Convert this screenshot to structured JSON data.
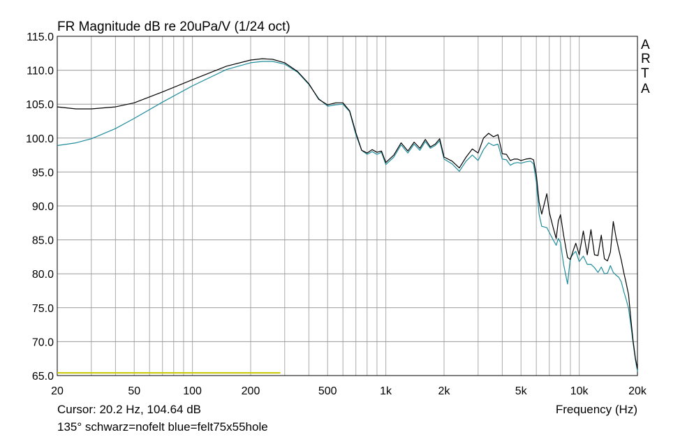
{
  "chart_data": {
    "type": "line",
    "title": "FR Magnitude dB re 20uPa/V (1/24 oct)",
    "xlabel": "Frequency (Hz)",
    "ylabel": "",
    "x_scale": "log",
    "xlim": [
      20,
      20000
    ],
    "ylim": [
      65,
      115
    ],
    "grid": true,
    "x_tick_values": [
      20,
      50,
      100,
      200,
      500,
      1000,
      2000,
      5000,
      10000,
      20000
    ],
    "x_tick_labels": [
      "20",
      "50",
      "100",
      "200",
      "500",
      "1k",
      "2k",
      "5k",
      "10k",
      "20k"
    ],
    "y_tick_values": [
      65,
      70,
      75,
      80,
      85,
      90,
      95,
      100,
      105,
      110,
      115
    ],
    "y_tick_labels": [
      "65.0",
      "70.0",
      "75.0",
      "80.0",
      "85.0",
      "90.0",
      "95.0",
      "100.0",
      "105.0",
      "110.0",
      "115.0"
    ],
    "watermark": [
      "A",
      "R",
      "T",
      "A"
    ],
    "cursor_text": "Cursor: 20.2 Hz, 104.64 dB",
    "legend_text": "135° schwarz=nofelt blue=felt75x55hole",
    "marker_line": {
      "x": [
        20,
        285
      ],
      "y": 65.4,
      "color": "#c8c800"
    },
    "series": [
      {
        "color": "#000000",
        "x": [
          20,
          25,
          30,
          40,
          50,
          70,
          100,
          150,
          200,
          230,
          260,
          300,
          350,
          400,
          450,
          500,
          550,
          600,
          650,
          700,
          750,
          800,
          850,
          900,
          950,
          1000,
          1100,
          1200,
          1300,
          1400,
          1500,
          1600,
          1700,
          1800,
          1900,
          2000,
          2200,
          2400,
          2600,
          2800,
          3000,
          3200,
          3400,
          3600,
          3800,
          4000,
          4200,
          4400,
          4600,
          4800,
          5000,
          5300,
          5600,
          5800,
          6000,
          6200,
          6400,
          6800,
          7000,
          7300,
          7600,
          7800,
          8000,
          8300,
          8700,
          9000,
          9300,
          9600,
          10000,
          10500,
          11000,
          11500,
          12000,
          12500,
          13000,
          13500,
          14000,
          14500,
          15000,
          15500,
          16000,
          16500,
          17000,
          17500,
          18000,
          18500,
          19000,
          19500,
          20000
        ],
        "y": [
          104.6,
          104.3,
          104.3,
          104.6,
          105.2,
          106.8,
          108.6,
          110.6,
          111.5,
          111.7,
          111.6,
          111.1,
          109.8,
          108.0,
          105.7,
          104.9,
          105.2,
          105.2,
          104.0,
          100.8,
          98.2,
          97.8,
          98.3,
          97.9,
          98.1,
          96.4,
          97.5,
          99.3,
          98.1,
          99.4,
          98.5,
          99.8,
          98.7,
          99.1,
          99.9,
          97.2,
          96.6,
          95.6,
          97.2,
          98.4,
          97.8,
          100.0,
          100.7,
          100.2,
          100.5,
          97.7,
          97.6,
          96.7,
          96.9,
          96.9,
          96.7,
          96.9,
          97.0,
          96.8,
          94.6,
          90.6,
          88.8,
          91.8,
          89.1,
          87.0,
          85.2,
          87.8,
          88.7,
          85.7,
          82.4,
          82.1,
          83.4,
          84.5,
          82.8,
          86.3,
          82.8,
          86.5,
          82.8,
          82.7,
          85.7,
          82.2,
          81.9,
          83.2,
          87.7,
          85.4,
          83.6,
          82.0,
          80.2,
          78.6,
          76.9,
          73.3,
          70.1,
          67.6,
          66.0
        ]
      },
      {
        "color": "#1e8c9a",
        "x": [
          20,
          25,
          30,
          40,
          50,
          70,
          100,
          150,
          200,
          230,
          260,
          300,
          350,
          400,
          450,
          500,
          550,
          600,
          650,
          700,
          750,
          800,
          850,
          900,
          950,
          1000,
          1100,
          1200,
          1300,
          1400,
          1500,
          1600,
          1700,
          1800,
          1900,
          2000,
          2200,
          2400,
          2600,
          2800,
          3000,
          3200,
          3400,
          3600,
          3800,
          4000,
          4200,
          4400,
          4600,
          4800,
          5000,
          5300,
          5600,
          5800,
          6000,
          6200,
          6400,
          6800,
          7000,
          7300,
          7600,
          7800,
          8000,
          8300,
          8700,
          9000,
          9300,
          9600,
          10000,
          10500,
          11000,
          11500,
          12000,
          12500,
          13000,
          13500,
          14000,
          14500,
          15000,
          15500,
          16000,
          16500,
          17000,
          17500,
          18000,
          18500,
          19000,
          19500,
          20000
        ],
        "y": [
          98.9,
          99.3,
          99.9,
          101.4,
          102.9,
          105.3,
          107.7,
          110.1,
          111.1,
          111.3,
          111.3,
          110.9,
          109.7,
          107.9,
          105.8,
          104.7,
          104.9,
          105.0,
          103.9,
          100.5,
          98.2,
          97.6,
          98.0,
          97.6,
          97.9,
          96.1,
          97.2,
          99.0,
          97.8,
          99.1,
          98.2,
          99.5,
          98.5,
          98.9,
          99.6,
          96.9,
          96.2,
          95.1,
          96.6,
          97.5,
          96.7,
          98.3,
          99.3,
          98.9,
          99.1,
          96.9,
          96.8,
          96.0,
          96.3,
          96.4,
          96.3,
          96.5,
          96.6,
          96.2,
          93.5,
          88.8,
          87.0,
          86.8,
          86.1,
          85.1,
          84.2,
          85.2,
          84.6,
          81.4,
          78.5,
          82.3,
          82.9,
          83.3,
          81.8,
          82.6,
          81.4,
          81.4,
          80.9,
          80.2,
          81.0,
          80.0,
          80.1,
          81.2,
          80.2,
          79.8,
          79.5,
          78.8,
          77.4,
          76.2,
          74.9,
          72.4,
          69.8,
          67.4,
          65.6
        ]
      }
    ]
  }
}
